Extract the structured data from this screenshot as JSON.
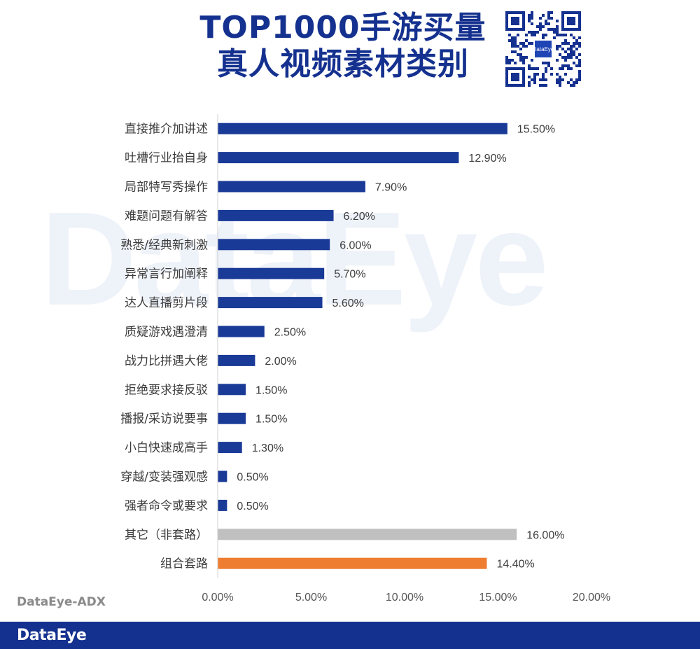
{
  "title": {
    "line1": "TOP1000手游买量",
    "line2": "真人视频素材类别"
  },
  "watermark": "DataEye",
  "qr_logo_text": "DataEye",
  "source": "DataEye-ADX",
  "footer_logo": "DataEye",
  "colors": {
    "primary": "#1a3a97",
    "other": "#c0c0c0",
    "combo": "#ee7d31",
    "title": "#15318f"
  },
  "chart_data": {
    "type": "bar",
    "orientation": "horizontal",
    "categories": [
      "直接推介加讲述",
      "吐槽行业抬自身",
      "局部特写秀操作",
      "难题问题有解答",
      "熟悉/经典新刺激",
      "异常言行加阐释",
      "达人直播剪片段",
      "质疑游戏遇澄清",
      "战力比拼遇大佬",
      "拒绝要求接反驳",
      "播报/采访说要事",
      "小白快速成高手",
      "穿越/变装强观感",
      "强者命令或要求",
      "其它（非套路）",
      "组合套路"
    ],
    "values": [
      15.5,
      12.9,
      7.9,
      6.2,
      6.0,
      5.7,
      5.6,
      2.5,
      2.0,
      1.5,
      1.5,
      1.3,
      0.5,
      0.5,
      16.0,
      14.4
    ],
    "value_labels": [
      "15.50%",
      "12.90%",
      "7.90%",
      "6.20%",
      "6.00%",
      "5.70%",
      "5.60%",
      "2.50%",
      "2.00%",
      "1.50%",
      "1.50%",
      "1.30%",
      "0.50%",
      "0.50%",
      "16.00%",
      "14.40%"
    ],
    "bar_colors": [
      "#1a3a97",
      "#1a3a97",
      "#1a3a97",
      "#1a3a97",
      "#1a3a97",
      "#1a3a97",
      "#1a3a97",
      "#1a3a97",
      "#1a3a97",
      "#1a3a97",
      "#1a3a97",
      "#1a3a97",
      "#1a3a97",
      "#1a3a97",
      "#c0c0c0",
      "#ee7d31"
    ],
    "xlim": [
      0,
      20
    ],
    "x_ticks": [
      0,
      5,
      10,
      15,
      20
    ],
    "x_tick_labels": [
      "0.00%",
      "5.00%",
      "10.00%",
      "15.00%",
      "20.00%"
    ],
    "grid": false,
    "legend": "none"
  }
}
